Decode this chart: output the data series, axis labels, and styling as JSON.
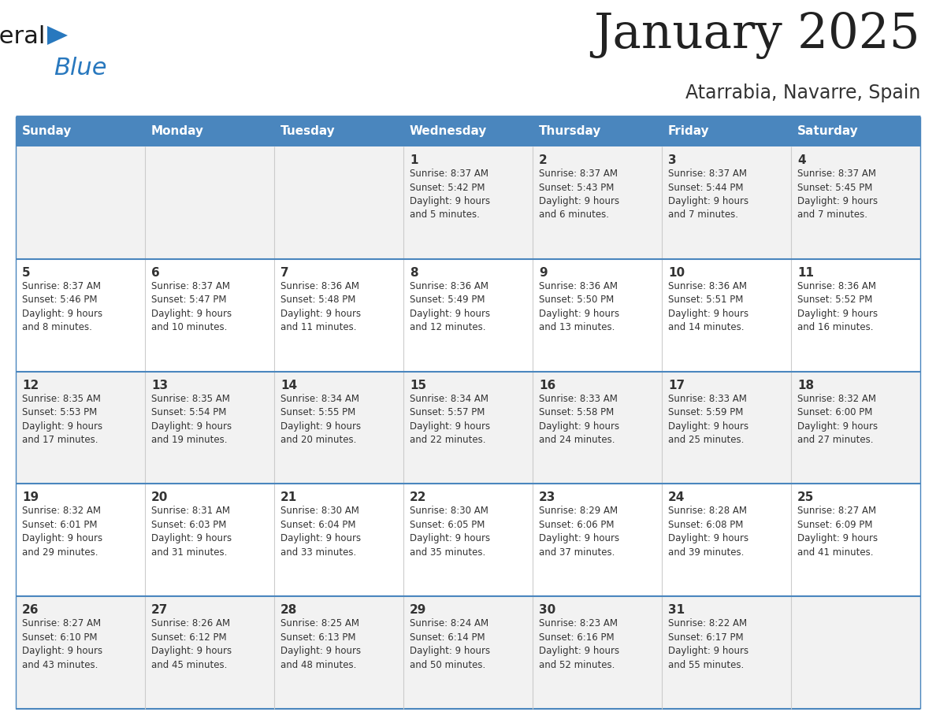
{
  "title": "January 2025",
  "subtitle": "Atarrabia, Navarre, Spain",
  "header_color": "#4a86be",
  "header_text_color": "#ffffff",
  "row_bg_odd": "#f2f2f2",
  "row_bg_even": "#ffffff",
  "line_color": "#4a86be",
  "text_color": "#333333",
  "logo_black": "#1a1a1a",
  "logo_blue": "#2878be",
  "days_of_week": [
    "Sunday",
    "Monday",
    "Tuesday",
    "Wednesday",
    "Thursday",
    "Friday",
    "Saturday"
  ],
  "calendar_data": [
    [
      {
        "day": "",
        "info": ""
      },
      {
        "day": "",
        "info": ""
      },
      {
        "day": "",
        "info": ""
      },
      {
        "day": "1",
        "info": "Sunrise: 8:37 AM\nSunset: 5:42 PM\nDaylight: 9 hours\nand 5 minutes."
      },
      {
        "day": "2",
        "info": "Sunrise: 8:37 AM\nSunset: 5:43 PM\nDaylight: 9 hours\nand 6 minutes."
      },
      {
        "day": "3",
        "info": "Sunrise: 8:37 AM\nSunset: 5:44 PM\nDaylight: 9 hours\nand 7 minutes."
      },
      {
        "day": "4",
        "info": "Sunrise: 8:37 AM\nSunset: 5:45 PM\nDaylight: 9 hours\nand 7 minutes."
      }
    ],
    [
      {
        "day": "5",
        "info": "Sunrise: 8:37 AM\nSunset: 5:46 PM\nDaylight: 9 hours\nand 8 minutes."
      },
      {
        "day": "6",
        "info": "Sunrise: 8:37 AM\nSunset: 5:47 PM\nDaylight: 9 hours\nand 10 minutes."
      },
      {
        "day": "7",
        "info": "Sunrise: 8:36 AM\nSunset: 5:48 PM\nDaylight: 9 hours\nand 11 minutes."
      },
      {
        "day": "8",
        "info": "Sunrise: 8:36 AM\nSunset: 5:49 PM\nDaylight: 9 hours\nand 12 minutes."
      },
      {
        "day": "9",
        "info": "Sunrise: 8:36 AM\nSunset: 5:50 PM\nDaylight: 9 hours\nand 13 minutes."
      },
      {
        "day": "10",
        "info": "Sunrise: 8:36 AM\nSunset: 5:51 PM\nDaylight: 9 hours\nand 14 minutes."
      },
      {
        "day": "11",
        "info": "Sunrise: 8:36 AM\nSunset: 5:52 PM\nDaylight: 9 hours\nand 16 minutes."
      }
    ],
    [
      {
        "day": "12",
        "info": "Sunrise: 8:35 AM\nSunset: 5:53 PM\nDaylight: 9 hours\nand 17 minutes."
      },
      {
        "day": "13",
        "info": "Sunrise: 8:35 AM\nSunset: 5:54 PM\nDaylight: 9 hours\nand 19 minutes."
      },
      {
        "day": "14",
        "info": "Sunrise: 8:34 AM\nSunset: 5:55 PM\nDaylight: 9 hours\nand 20 minutes."
      },
      {
        "day": "15",
        "info": "Sunrise: 8:34 AM\nSunset: 5:57 PM\nDaylight: 9 hours\nand 22 minutes."
      },
      {
        "day": "16",
        "info": "Sunrise: 8:33 AM\nSunset: 5:58 PM\nDaylight: 9 hours\nand 24 minutes."
      },
      {
        "day": "17",
        "info": "Sunrise: 8:33 AM\nSunset: 5:59 PM\nDaylight: 9 hours\nand 25 minutes."
      },
      {
        "day": "18",
        "info": "Sunrise: 8:32 AM\nSunset: 6:00 PM\nDaylight: 9 hours\nand 27 minutes."
      }
    ],
    [
      {
        "day": "19",
        "info": "Sunrise: 8:32 AM\nSunset: 6:01 PM\nDaylight: 9 hours\nand 29 minutes."
      },
      {
        "day": "20",
        "info": "Sunrise: 8:31 AM\nSunset: 6:03 PM\nDaylight: 9 hours\nand 31 minutes."
      },
      {
        "day": "21",
        "info": "Sunrise: 8:30 AM\nSunset: 6:04 PM\nDaylight: 9 hours\nand 33 minutes."
      },
      {
        "day": "22",
        "info": "Sunrise: 8:30 AM\nSunset: 6:05 PM\nDaylight: 9 hours\nand 35 minutes."
      },
      {
        "day": "23",
        "info": "Sunrise: 8:29 AM\nSunset: 6:06 PM\nDaylight: 9 hours\nand 37 minutes."
      },
      {
        "day": "24",
        "info": "Sunrise: 8:28 AM\nSunset: 6:08 PM\nDaylight: 9 hours\nand 39 minutes."
      },
      {
        "day": "25",
        "info": "Sunrise: 8:27 AM\nSunset: 6:09 PM\nDaylight: 9 hours\nand 41 minutes."
      }
    ],
    [
      {
        "day": "26",
        "info": "Sunrise: 8:27 AM\nSunset: 6:10 PM\nDaylight: 9 hours\nand 43 minutes."
      },
      {
        "day": "27",
        "info": "Sunrise: 8:26 AM\nSunset: 6:12 PM\nDaylight: 9 hours\nand 45 minutes."
      },
      {
        "day": "28",
        "info": "Sunrise: 8:25 AM\nSunset: 6:13 PM\nDaylight: 9 hours\nand 48 minutes."
      },
      {
        "day": "29",
        "info": "Sunrise: 8:24 AM\nSunset: 6:14 PM\nDaylight: 9 hours\nand 50 minutes."
      },
      {
        "day": "30",
        "info": "Sunrise: 8:23 AM\nSunset: 6:16 PM\nDaylight: 9 hours\nand 52 minutes."
      },
      {
        "day": "31",
        "info": "Sunrise: 8:22 AM\nSunset: 6:17 PM\nDaylight: 9 hours\nand 55 minutes."
      },
      {
        "day": "",
        "info": ""
      }
    ]
  ]
}
